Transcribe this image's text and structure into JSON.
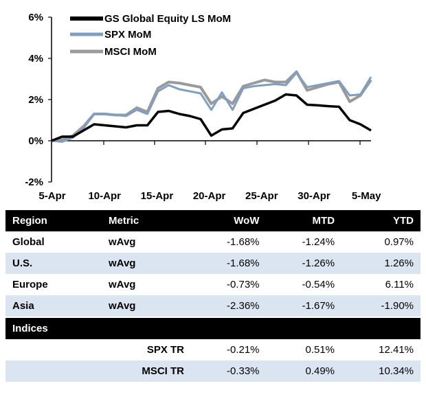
{
  "chart_data": {
    "type": "line",
    "x_ticks": [
      "5-Apr",
      "10-Apr",
      "15-Apr",
      "20-Apr",
      "25-Apr",
      "30-Apr",
      "5-May"
    ],
    "y_ticks": [
      "6%",
      "4%",
      "2%",
      "0%",
      "-2%"
    ],
    "ylim": [
      -2,
      6
    ],
    "ylabel": "",
    "xlabel": "",
    "series": [
      {
        "name": "GS Global Equity LS MoM",
        "color": "#000000",
        "values": [
          0.0,
          0.2,
          0.2,
          0.5,
          0.8,
          0.75,
          0.7,
          0.65,
          0.75,
          0.75,
          1.4,
          1.45,
          1.3,
          1.2,
          1.05,
          0.25,
          0.55,
          0.6,
          1.35,
          1.55,
          1.75,
          1.95,
          2.25,
          2.2,
          1.75,
          1.72,
          1.68,
          1.65,
          1.0,
          0.8,
          0.5
        ]
      },
      {
        "name": "SPX MoM",
        "color": "#7f9ec4",
        "values": [
          0.0,
          -0.05,
          0.15,
          0.6,
          1.3,
          1.3,
          1.25,
          1.2,
          1.5,
          1.3,
          2.4,
          2.7,
          2.5,
          2.4,
          2.3,
          1.5,
          2.35,
          1.5,
          2.55,
          2.65,
          2.7,
          2.75,
          2.7,
          3.3,
          2.6,
          2.7,
          2.8,
          2.9,
          2.2,
          2.25,
          3.1
        ]
      },
      {
        "name": "MSCI MoM",
        "color": "#9a9a9a",
        "values": [
          0.0,
          0.05,
          0.25,
          0.7,
          1.3,
          1.3,
          1.25,
          1.25,
          1.6,
          1.4,
          2.55,
          2.85,
          2.8,
          2.7,
          2.6,
          1.8,
          2.15,
          1.8,
          2.65,
          2.8,
          2.95,
          2.85,
          2.85,
          3.35,
          2.45,
          2.6,
          2.75,
          2.85,
          1.9,
          2.2,
          2.95
        ]
      }
    ],
    "legend_position": "top-left"
  },
  "table": {
    "headers": [
      "Region",
      "Metric",
      "WoW",
      "MTD",
      "YTD"
    ],
    "rows": [
      {
        "region": "Global",
        "metric": "wAvg",
        "wow": "-1.68%",
        "mtd": "-1.24%",
        "ytd": "0.97%"
      },
      {
        "region": "U.S.",
        "metric": "wAvg",
        "wow": "-1.68%",
        "mtd": "-1.26%",
        "ytd": "1.26%"
      },
      {
        "region": "Europe",
        "metric": "wAvg",
        "wow": "-0.73%",
        "mtd": "-0.54%",
        "ytd": "6.11%"
      },
      {
        "region": "Asia",
        "metric": "wAvg",
        "wow": "-2.36%",
        "mtd": "-1.67%",
        "ytd": "-1.90%"
      }
    ],
    "indices_header": "Indices",
    "indices": [
      {
        "name": "SPX TR",
        "wow": "-0.21%",
        "mtd": "0.51%",
        "ytd": "12.41%"
      },
      {
        "name": "MSCI TR",
        "wow": "-0.33%",
        "mtd": "0.49%",
        "ytd": "10.34%"
      }
    ]
  }
}
